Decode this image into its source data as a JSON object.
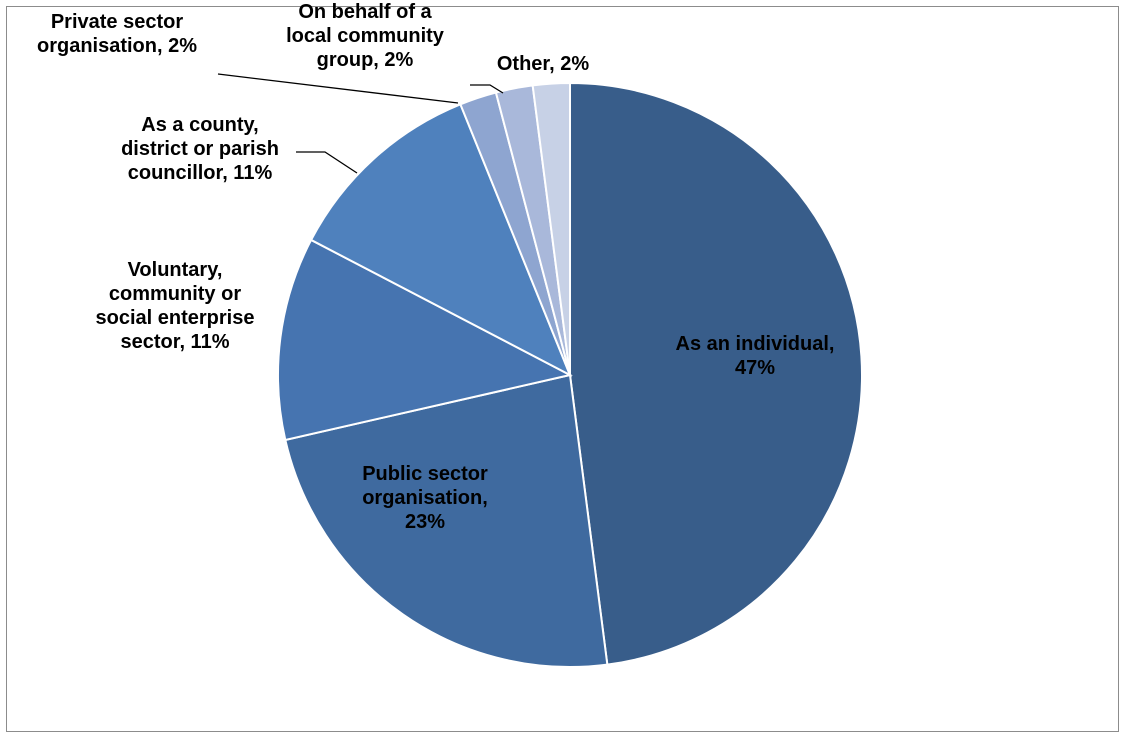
{
  "chart_data": {
    "type": "pie",
    "title": "",
    "slices": [
      {
        "label": [
          "As an individual,",
          "47%"
        ],
        "value": 47,
        "color": "#385D8A"
      },
      {
        "label": [
          "Public sector",
          "organisation,",
          "23%"
        ],
        "value": 23,
        "color": "#3F6A9F"
      },
      {
        "label": [
          "Voluntary,",
          "community or",
          "social enterprise",
          "sector, 11%"
        ],
        "value": 11,
        "color": "#4674B0"
      },
      {
        "label": [
          "As a county,",
          "district or parish",
          "councillor, 11%"
        ],
        "value": 11,
        "color": "#4F81BD"
      },
      {
        "label": [
          "Private sector",
          "organisation, 2%"
        ],
        "value": 2,
        "color": "#8EA5D0"
      },
      {
        "label": [
          "On behalf of a",
          "local community",
          "group, 2%"
        ],
        "value": 2,
        "color": "#A9B8DA"
      },
      {
        "label": [
          "Other, 2%"
        ],
        "value": 2,
        "color": "#C7D1E6"
      }
    ],
    "start_angle_deg": 0,
    "direction": "clockwise",
    "legend": "none",
    "data_labels": true
  }
}
